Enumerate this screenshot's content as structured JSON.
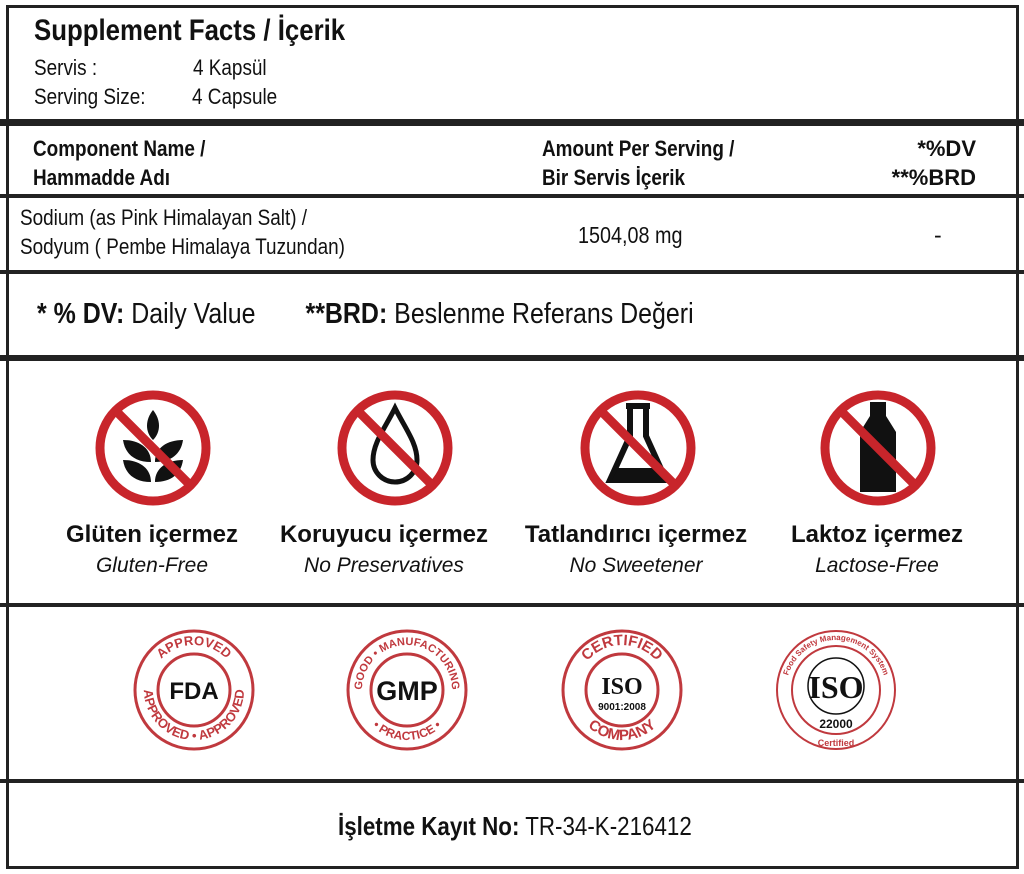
{
  "header": {
    "title": "Supplement Facts / İçerik",
    "servis_label": "Servis :",
    "servis_value": "4 Kapsül",
    "serving_size_label": "Serving Size:",
    "serving_size_value": "4 Capsule"
  },
  "table": {
    "columns": [
      {
        "line1": "Component Name /",
        "line2": "Hammadde Adı"
      },
      {
        "line1": "Amount Per Serving /",
        "line2": "Bir Servis İçerik"
      },
      {
        "line1": "*%DV",
        "line2": "**%BRD"
      }
    ],
    "rows": [
      {
        "name_line1": "Sodium (as Pink Himalayan Salt) /",
        "name_line2": "Sodyum ( Pembe Himalaya Tuzundan)",
        "amount": "1504,08 mg",
        "dv": "-"
      }
    ]
  },
  "legend": {
    "dv_key": "* % DV:",
    "dv_text": "Daily Value",
    "brd_key": "**BRD:",
    "brd_text": "Beslenme Referans Değeri"
  },
  "free_from": [
    {
      "icon": "no-gluten-wheat-icon",
      "tr": "Glüten içermez",
      "en": "Gluten-Free"
    },
    {
      "icon": "no-preservative-drop-icon",
      "tr": "Koruyucu içermez",
      "en": "No Preservatives"
    },
    {
      "icon": "no-sweetener-flask-icon",
      "tr": "Tatlandırıcı içermez",
      "en": "No Sweetener"
    },
    {
      "icon": "no-lactose-bottle-icon",
      "tr": "Laktoz içermez",
      "en": "Lactose-Free"
    }
  ],
  "certifications": [
    {
      "icon": "fda-approved-seal-icon",
      "center": "FDA",
      "ring_top": "APPROVED",
      "ring_bottom": "APPROVED • APPROVED"
    },
    {
      "icon": "gmp-seal-icon",
      "center": "GMP",
      "ring_top": "GOOD • MANUFACTURING",
      "ring_bottom": "• PRACTICE •"
    },
    {
      "icon": "iso-9001-seal-icon",
      "center": "ISO",
      "sub": "9001:2008",
      "ring_top": "CERTIFIED",
      "ring_bottom": "COMPANY"
    },
    {
      "icon": "iso-22000-seal-icon",
      "center": "ISO",
      "sub": "22000",
      "ring_top": "Food Safety Management System",
      "ring_bottom": "Certified"
    }
  ],
  "footer": {
    "label": "İşletme Kayıt No:",
    "value": "TR-34-K-216412"
  },
  "colors": {
    "prohibit_red": "#c8252b",
    "seal_red": "#c0393e",
    "border": "#222222"
  }
}
